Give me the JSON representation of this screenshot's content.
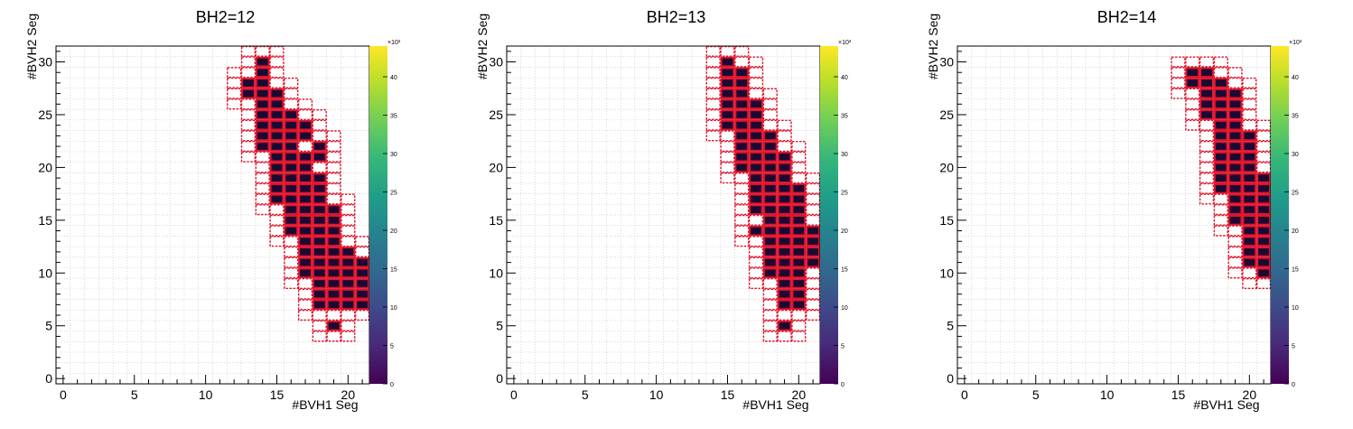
{
  "chart_data": [
    {
      "type": "heatmap",
      "title": "BH2=12",
      "xlabel": "#BVH1 Seg",
      "ylabel": "#BVH2 Seg",
      "xlim": [
        -0.5,
        21.5
      ],
      "ylim": [
        -0.5,
        31.5
      ],
      "x_ticks": [
        "0",
        "5",
        "10",
        "15",
        "20"
      ],
      "y_ticks": [
        "0",
        "5",
        "10",
        "15",
        "20",
        "25",
        "30"
      ],
      "colorbar": {
        "min": 0,
        "max": 44,
        "ticks": [
          "0",
          "5",
          "10",
          "15",
          "20",
          "25",
          "30",
          "35",
          "40"
        ],
        "exponent": "×10³"
      },
      "filled_rows": [
        {
          "y": 5,
          "x": [
            19
          ]
        },
        {
          "y": 7,
          "x": [
            18,
            19,
            20,
            21
          ]
        },
        {
          "y": 8,
          "x": [
            18,
            19,
            20,
            21
          ]
        },
        {
          "y": 9,
          "x": [
            18,
            19,
            20,
            21
          ]
        },
        {
          "y": 10,
          "x": [
            17,
            18,
            19,
            20,
            21
          ]
        },
        {
          "y": 11,
          "x": [
            17,
            18,
            19,
            20,
            21
          ]
        },
        {
          "y": 12,
          "x": [
            17,
            18,
            19,
            20
          ]
        },
        {
          "y": 13,
          "x": [
            17,
            18,
            19
          ]
        },
        {
          "y": 14,
          "x": [
            16,
            17,
            18,
            19
          ]
        },
        {
          "y": 15,
          "x": [
            16,
            17,
            18,
            19
          ]
        },
        {
          "y": 16,
          "x": [
            16,
            17,
            18,
            19
          ]
        },
        {
          "y": 17,
          "x": [
            15,
            16,
            17,
            18
          ]
        },
        {
          "y": 18,
          "x": [
            15,
            16,
            17,
            18
          ]
        },
        {
          "y": 19,
          "x": [
            15,
            16,
            17,
            18
          ]
        },
        {
          "y": 20,
          "x": [
            15,
            16,
            17
          ]
        },
        {
          "y": 21,
          "x": [
            15,
            16,
            17,
            18
          ]
        },
        {
          "y": 22,
          "x": [
            14,
            15,
            16,
            18
          ]
        },
        {
          "y": 23,
          "x": [
            14,
            15,
            16,
            17
          ]
        },
        {
          "y": 24,
          "x": [
            14,
            15,
            16,
            17
          ]
        },
        {
          "y": 25,
          "x": [
            14,
            15,
            16
          ]
        },
        {
          "y": 26,
          "x": [
            14,
            15
          ]
        },
        {
          "y": 27,
          "x": [
            13,
            14,
            15
          ]
        },
        {
          "y": 28,
          "x": [
            13,
            14
          ]
        },
        {
          "y": 29,
          "x": [
            14
          ]
        },
        {
          "y": 30,
          "x": [
            14
          ]
        }
      ]
    },
    {
      "type": "heatmap",
      "title": "BH2=13",
      "xlabel": "#BVH1 Seg",
      "ylabel": "#BVH2 Seg",
      "xlim": [
        -0.5,
        21.5
      ],
      "ylim": [
        -0.5,
        31.5
      ],
      "x_ticks": [
        "0",
        "5",
        "10",
        "15",
        "20"
      ],
      "y_ticks": [
        "0",
        "5",
        "10",
        "15",
        "20",
        "25",
        "30"
      ],
      "colorbar": {
        "min": 0,
        "max": 44,
        "ticks": [
          "0",
          "5",
          "10",
          "15",
          "20",
          "25",
          "30",
          "35",
          "40"
        ],
        "exponent": "×10³"
      },
      "filled_rows": [
        {
          "y": 5,
          "x": [
            19
          ]
        },
        {
          "y": 7,
          "x": [
            19,
            20
          ]
        },
        {
          "y": 8,
          "x": [
            19,
            20
          ]
        },
        {
          "y": 9,
          "x": [
            19,
            20
          ]
        },
        {
          "y": 10,
          "x": [
            18,
            19,
            20
          ]
        },
        {
          "y": 11,
          "x": [
            18,
            19,
            20,
            21
          ]
        },
        {
          "y": 12,
          "x": [
            18,
            19,
            20,
            21
          ]
        },
        {
          "y": 13,
          "x": [
            18,
            19,
            20,
            21
          ]
        },
        {
          "y": 14,
          "x": [
            17,
            18,
            19,
            20,
            21
          ]
        },
        {
          "y": 15,
          "x": [
            18,
            19,
            20
          ]
        },
        {
          "y": 16,
          "x": [
            17,
            18,
            19,
            20
          ]
        },
        {
          "y": 17,
          "x": [
            17,
            18,
            19,
            20
          ]
        },
        {
          "y": 18,
          "x": [
            17,
            18,
            19,
            20
          ]
        },
        {
          "y": 19,
          "x": [
            17,
            18,
            19
          ]
        },
        {
          "y": 20,
          "x": [
            16,
            17,
            18,
            19
          ]
        },
        {
          "y": 21,
          "x": [
            16,
            17,
            18,
            19
          ]
        },
        {
          "y": 22,
          "x": [
            16,
            17,
            18
          ]
        },
        {
          "y": 23,
          "x": [
            16,
            17,
            18
          ]
        },
        {
          "y": 24,
          "x": [
            15,
            16,
            17
          ]
        },
        {
          "y": 25,
          "x": [
            15,
            16,
            17
          ]
        },
        {
          "y": 26,
          "x": [
            15,
            16,
            17
          ]
        },
        {
          "y": 27,
          "x": [
            15,
            16
          ]
        },
        {
          "y": 28,
          "x": [
            15,
            16
          ]
        },
        {
          "y": 29,
          "x": [
            15,
            16
          ]
        },
        {
          "y": 30,
          "x": [
            15
          ]
        }
      ]
    },
    {
      "type": "heatmap",
      "title": "BH2=14",
      "xlabel": "#BVH1 Seg",
      "ylabel": "#BVH2 Seg",
      "xlim": [
        -0.5,
        21.5
      ],
      "ylim": [
        -0.5,
        31.5
      ],
      "x_ticks": [
        "0",
        "5",
        "10",
        "15",
        "20"
      ],
      "y_ticks": [
        "0",
        "5",
        "10",
        "15",
        "20",
        "25",
        "30"
      ],
      "colorbar": {
        "min": 0,
        "max": 44,
        "ticks": [
          "0",
          "5",
          "10",
          "15",
          "20",
          "25",
          "30",
          "35",
          "40"
        ],
        "exponent": "×10³"
      },
      "filled_rows": [
        {
          "y": 10,
          "x": [
            21
          ]
        },
        {
          "y": 11,
          "x": [
            20,
            21
          ]
        },
        {
          "y": 12,
          "x": [
            20,
            21
          ]
        },
        {
          "y": 13,
          "x": [
            20,
            21
          ]
        },
        {
          "y": 14,
          "x": [
            20,
            21
          ]
        },
        {
          "y": 15,
          "x": [
            19,
            20,
            21
          ]
        },
        {
          "y": 16,
          "x": [
            19,
            20,
            21
          ]
        },
        {
          "y": 17,
          "x": [
            19,
            20,
            21
          ]
        },
        {
          "y": 18,
          "x": [
            18,
            19,
            20,
            21
          ]
        },
        {
          "y": 19,
          "x": [
            18,
            19,
            20,
            21
          ]
        },
        {
          "y": 20,
          "x": [
            18,
            19,
            20
          ]
        },
        {
          "y": 21,
          "x": [
            18,
            19,
            20
          ]
        },
        {
          "y": 22,
          "x": [
            18,
            19,
            20
          ]
        },
        {
          "y": 23,
          "x": [
            18,
            19,
            20
          ]
        },
        {
          "y": 24,
          "x": [
            18,
            19
          ]
        },
        {
          "y": 25,
          "x": [
            17,
            18,
            19
          ]
        },
        {
          "y": 26,
          "x": [
            17,
            18,
            19
          ]
        },
        {
          "y": 27,
          "x": [
            17,
            18,
            19
          ]
        },
        {
          "y": 28,
          "x": [
            16,
            17,
            18
          ]
        },
        {
          "y": 29,
          "x": [
            16,
            17
          ]
        }
      ]
    }
  ]
}
